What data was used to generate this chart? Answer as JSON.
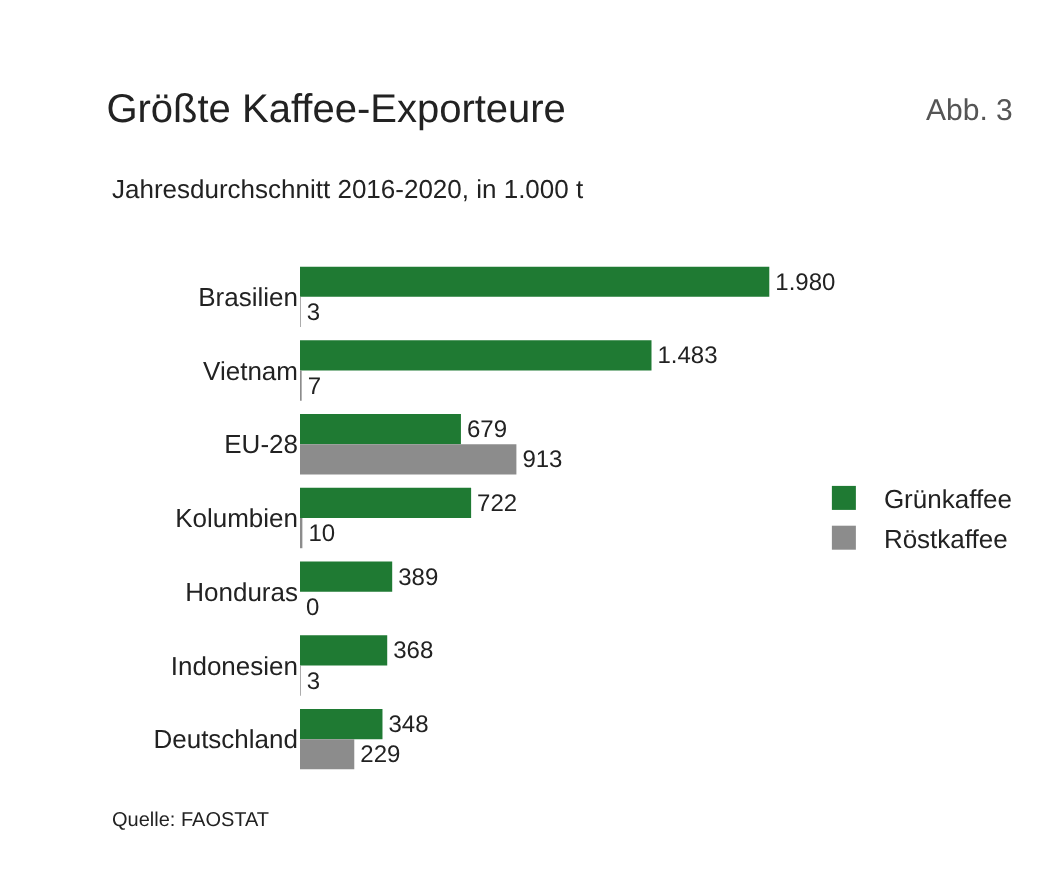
{
  "chart_data": {
    "type": "bar",
    "orientation": "horizontal",
    "title": "Größte Kaffee-Exporteure",
    "subtitle": "Jahresdurchschnitt 2016-2020, in 1.000 t",
    "categories": [
      "Brasilien",
      "Vietnam",
      "EU-28",
      "Kolumbien",
      "Honduras",
      "Indonesien",
      "Deutschland"
    ],
    "series": [
      {
        "name": "Grünkaffee",
        "color": "#1f7a33",
        "values": [
          1980,
          1483,
          679,
          722,
          389,
          368,
          348
        ],
        "value_labels": [
          "1.980",
          "1.483",
          "679",
          "722",
          "389",
          "368",
          "348"
        ]
      },
      {
        "name": "Röstkaffee",
        "color": "#8c8c8c",
        "values": [
          3,
          7,
          913,
          10,
          0,
          3,
          229
        ],
        "value_labels": [
          "3",
          "7",
          "913",
          "10",
          "0",
          "3",
          "229"
        ]
      }
    ],
    "legend": "right",
    "annotations": [
      "Abb. 3",
      "Quelle: FAOSTAT"
    ]
  }
}
